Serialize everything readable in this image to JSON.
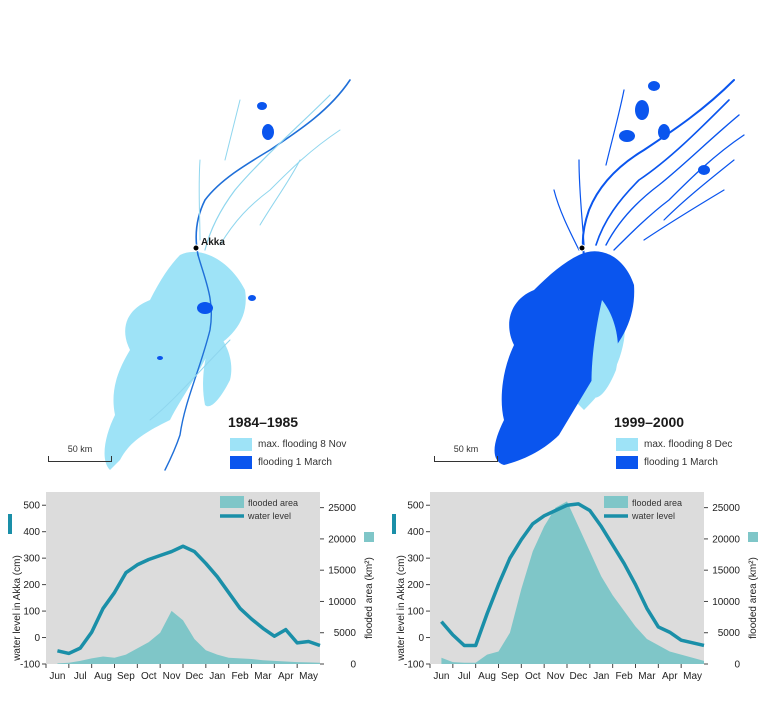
{
  "maps": [
    {
      "period": "1984–1985",
      "place_label": "Akka",
      "legend": [
        {
          "label": "max. flooding 8 Nov",
          "color": "#9ee3f7"
        },
        {
          "label": "flooding 1 March",
          "color": "#0a55ee"
        }
      ],
      "scale_label": "50 km"
    },
    {
      "period": "1999–2000",
      "place_label": "",
      "legend": [
        {
          "label": "max. flooding 8 Dec",
          "color": "#9ee3f7"
        },
        {
          "label": "flooding 1 March",
          "color": "#0a55ee"
        }
      ],
      "scale_label": "50 km"
    }
  ],
  "colors": {
    "chart_background": "#dcdcdc",
    "flooded_area": "#7fc6c8",
    "water_level": "#1a8fa8",
    "river_dark": "#1f6fd8",
    "river_light": "#8fd6ee"
  },
  "chart_data": [
    {
      "type": "line",
      "categories": [
        "Jun",
        "Jul",
        "Aug",
        "Sep",
        "Oct",
        "Nov",
        "Dec",
        "Jan",
        "Feb",
        "Mar",
        "Apr",
        "May"
      ],
      "ylabel": "water level in Akka (cm)",
      "ylabel_right": "flooded area (km²)",
      "ylim": [
        -100,
        550
      ],
      "ylim_right": [
        0,
        27500
      ],
      "yticks": [
        -100,
        0,
        100,
        200,
        300,
        400,
        500
      ],
      "yticks_right": [
        0,
        5000,
        10000,
        15000,
        20000,
        25000
      ],
      "legend": [
        "flooded area",
        "water level"
      ],
      "series": [
        {
          "name": "water level",
          "axis": "left",
          "x": [
            0,
            0.5,
            1,
            1.5,
            2,
            2.5,
            3,
            3.5,
            4,
            4.5,
            5,
            5.5,
            6,
            6.5,
            7,
            7.5,
            8,
            8.5,
            9,
            9.5,
            10,
            10.5,
            11,
            11.5
          ],
          "values": [
            -50,
            -60,
            -40,
            20,
            110,
            170,
            245,
            275,
            295,
            310,
            325,
            345,
            325,
            280,
            230,
            170,
            110,
            70,
            35,
            5,
            30,
            -20,
            -15,
            -30
          ]
        },
        {
          "name": "flooded area",
          "axis": "right",
          "x": [
            0,
            0.5,
            1,
            1.5,
            2,
            2.5,
            3,
            3.5,
            4,
            4.5,
            5,
            5.5,
            6,
            6.5,
            7,
            7.5,
            8,
            8.5,
            9,
            9.5,
            10,
            10.5,
            11,
            11.5
          ],
          "values": [
            100,
            200,
            500,
            900,
            1200,
            1000,
            1500,
            2500,
            3500,
            5000,
            8500,
            7000,
            4000,
            2200,
            1500,
            1000,
            900,
            800,
            600,
            500,
            400,
            300,
            250,
            200
          ]
        }
      ]
    },
    {
      "type": "line",
      "categories": [
        "Jun",
        "Jul",
        "Aug",
        "Sep",
        "Oct",
        "Nov",
        "Dec",
        "Jan",
        "Feb",
        "Mar",
        "Apr",
        "May"
      ],
      "ylabel": "water level in Akka (cm)",
      "ylabel_right": "flooded area (km²)",
      "ylim": [
        -100,
        550
      ],
      "ylim_right": [
        0,
        27500
      ],
      "yticks": [
        -100,
        0,
        100,
        200,
        300,
        400,
        500
      ],
      "yticks_right": [
        0,
        5000,
        10000,
        15000,
        20000,
        25000
      ],
      "legend": [
        "flooded area",
        "water level"
      ],
      "series": [
        {
          "name": "water level",
          "axis": "left",
          "x": [
            0,
            0.5,
            1,
            1.5,
            2,
            2.5,
            3,
            3.5,
            4,
            4.5,
            5,
            5.5,
            6,
            6.5,
            7,
            7.5,
            8,
            8.5,
            9,
            9.5,
            10,
            10.5,
            11,
            11.5
          ],
          "values": [
            60,
            10,
            -30,
            -30,
            90,
            200,
            300,
            370,
            430,
            460,
            480,
            500,
            505,
            480,
            420,
            350,
            280,
            200,
            110,
            40,
            20,
            -10,
            -20,
            -30
          ]
        },
        {
          "name": "flooded area",
          "axis": "right",
          "x": [
            0,
            0.5,
            1,
            1.5,
            2,
            2.5,
            3,
            3.5,
            4,
            4.5,
            5,
            5.5,
            6,
            6.5,
            7,
            7.5,
            8,
            8.5,
            9,
            9.5,
            10,
            10.5,
            11,
            11.5
          ],
          "values": [
            1000,
            300,
            200,
            200,
            1500,
            2000,
            5000,
            12000,
            18000,
            22000,
            25000,
            26000,
            22000,
            18000,
            14000,
            11000,
            8500,
            6000,
            4000,
            3000,
            2000,
            1500,
            1000,
            500
          ]
        }
      ]
    }
  ]
}
